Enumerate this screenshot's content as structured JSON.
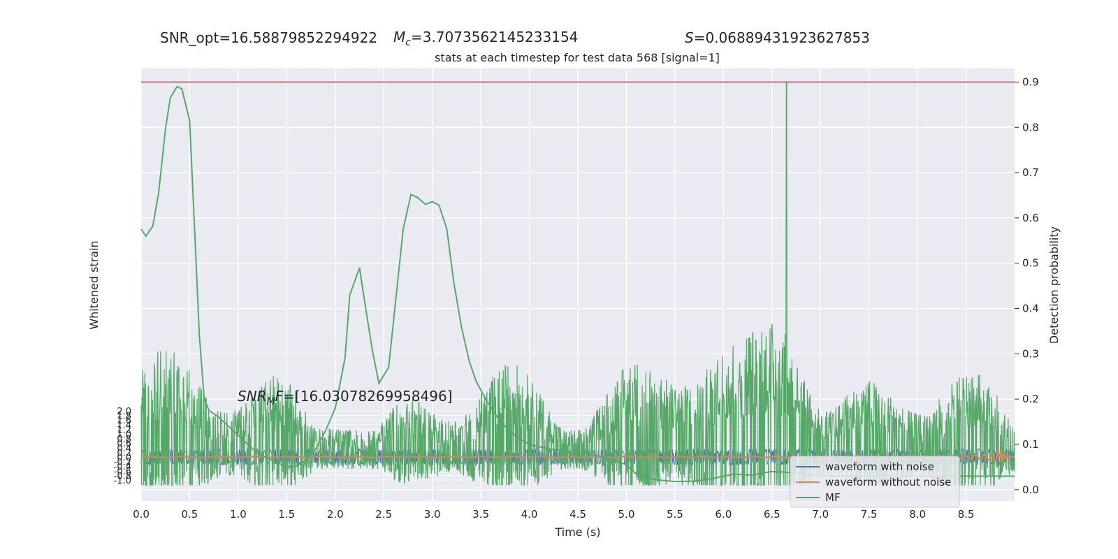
{
  "header": {
    "snr_opt": "SNR_opt=16.58879852294922",
    "mc_symbol": "M",
    "mc_sub": "c",
    "mc_value": "=3.7073562145233154",
    "s_symbol": "S",
    "s_value": "=0.06889431923627853",
    "subtitle": "stats at each timestep for test data 568 [signal=1]"
  },
  "annotation": {
    "snr_symbol": "SNR",
    "snr_sub": "M",
    "snr_f": "F",
    "snr_value": "=[16.03078269958496]"
  },
  "colors": {
    "background": "#eaeaf2",
    "grid": "#ffffff",
    "noisy": "#4c72b0",
    "clean": "#dd8452",
    "mf": "#55a868",
    "threshold": "#c44e52"
  },
  "chart_data": {
    "type": "line",
    "xlabel": "Time (s)",
    "y_left_label": "Whitened strain",
    "y_right_label": "Detection probability",
    "xlim": [
      0.0,
      9.0
    ],
    "x_ticks": [
      "0.0",
      "0.5",
      "1.0",
      "1.5",
      "2.0",
      "2.5",
      "3.0",
      "3.5",
      "4.0",
      "4.5",
      "5.0",
      "5.5",
      "6.0",
      "6.5",
      "7.0",
      "7.5",
      "8.0",
      "8.5"
    ],
    "x_tick_values": [
      0.0,
      0.5,
      1.0,
      1.5,
      2.0,
      2.5,
      3.0,
      3.5,
      4.0,
      4.5,
      5.0,
      5.5,
      6.0,
      6.5,
      7.0,
      7.5,
      8.0,
      8.5
    ],
    "ylim_right": [
      -0.025,
      0.93
    ],
    "y_right_ticks": [
      "0.0",
      "0.1",
      "0.2",
      "0.3",
      "0.4",
      "0.5",
      "0.6",
      "0.7",
      "0.8",
      "0.9"
    ],
    "y_right_tick_values": [
      0.0,
      0.1,
      0.2,
      0.3,
      0.4,
      0.5,
      0.6,
      0.7,
      0.8,
      0.9
    ],
    "y_left_ticks_top": [
      "2.0",
      "1.8",
      "1.6",
      "1.4",
      "1.2",
      "1.0",
      "0.8",
      "0.6",
      "0.4",
      "0.2",
      "0.0"
    ],
    "y_left_ticks_bottom": [
      "-0.2",
      "-0.4",
      "-0.6",
      "-0.8",
      "-1.0"
    ],
    "legend_position": "lower-right",
    "threshold": 0.9,
    "grid": true,
    "series": [
      {
        "name": "waveform with noise",
        "kind": "noise-band",
        "axis": "left",
        "center": 0.0,
        "amplitude": 0.3
      },
      {
        "name": "waveform without noise",
        "kind": "chirp",
        "axis": "left",
        "merger_time": 8.85
      },
      {
        "name": "MF",
        "kind": "line",
        "axis": "right",
        "x": [
          0.0,
          0.05,
          0.12,
          0.18,
          0.25,
          0.3,
          0.37,
          0.42,
          0.5,
          0.55,
          0.6,
          0.65,
          0.7,
          0.8,
          0.9,
          1.0,
          1.1,
          1.2,
          1.3,
          1.4,
          1.5,
          1.6,
          1.7,
          1.8,
          1.9,
          2.0,
          2.1,
          2.15,
          2.25,
          2.3,
          2.38,
          2.45,
          2.55,
          2.7,
          2.78,
          2.85,
          2.93,
          3.0,
          3.07,
          3.15,
          3.22,
          3.3,
          3.38,
          3.45,
          3.55,
          3.7,
          3.85,
          4.0,
          4.2,
          4.4,
          4.6,
          4.8,
          5.0,
          5.1,
          5.2,
          5.3,
          5.5,
          5.7,
          5.9,
          6.0,
          6.1,
          6.2,
          6.3,
          6.4,
          6.5,
          6.6,
          6.7,
          6.8,
          6.9,
          7.0,
          7.2,
          7.5,
          7.8,
          8.0,
          8.5,
          9.0
        ],
        "y": [
          0.575,
          0.56,
          0.582,
          0.655,
          0.795,
          0.865,
          0.89,
          0.885,
          0.815,
          0.58,
          0.34,
          0.2,
          0.175,
          0.16,
          0.14,
          0.12,
          0.1,
          0.08,
          0.07,
          0.06,
          0.05,
          0.052,
          0.065,
          0.09,
          0.13,
          0.18,
          0.29,
          0.43,
          0.49,
          0.42,
          0.31,
          0.235,
          0.27,
          0.575,
          0.652,
          0.645,
          0.63,
          0.636,
          0.628,
          0.575,
          0.46,
          0.36,
          0.285,
          0.24,
          0.2,
          0.15,
          0.12,
          0.1,
          0.09,
          0.085,
          0.08,
          0.07,
          0.055,
          0.035,
          0.027,
          0.022,
          0.018,
          0.019,
          0.025,
          0.03,
          0.034,
          0.033,
          0.032,
          0.037,
          0.04,
          0.039,
          0.038,
          0.035,
          0.033,
          0.03,
          0.03,
          0.03,
          0.03,
          0.03,
          0.03,
          0.03
        ]
      },
      {
        "name": "",
        "kind": "noisy-probability",
        "axis": "right",
        "baseline": 0.075,
        "peak_time": 6.65,
        "peak_value": 0.9
      }
    ]
  }
}
